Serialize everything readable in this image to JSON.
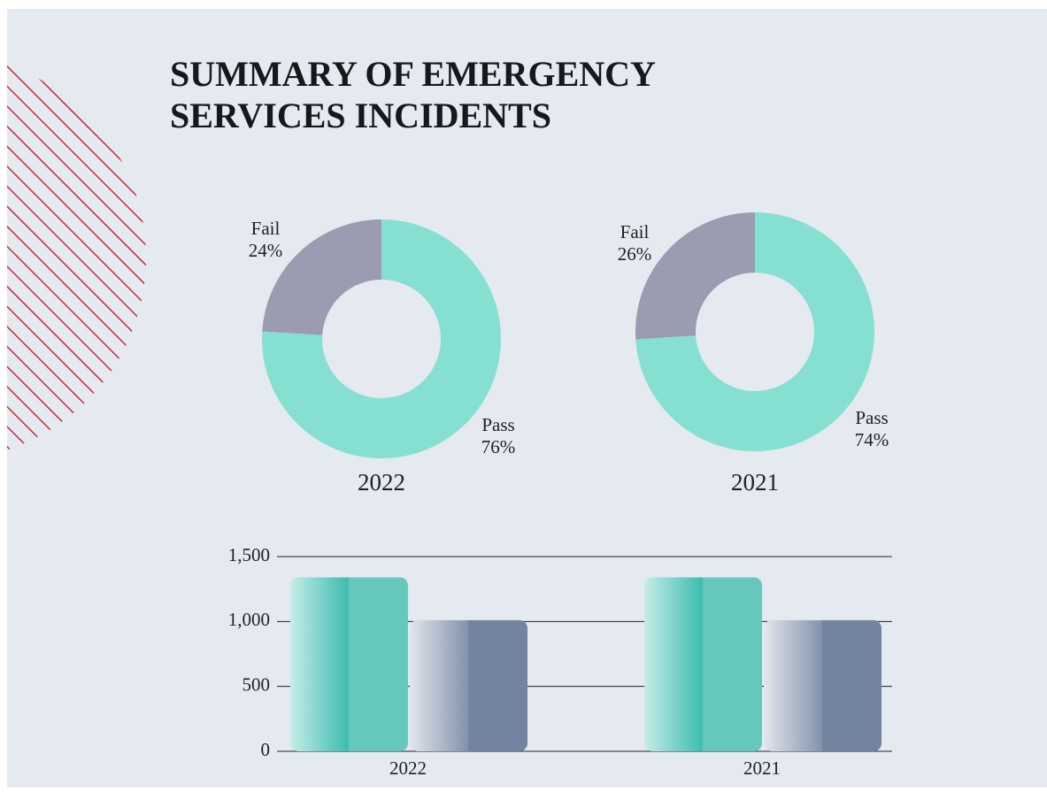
{
  "title": "SUMMARY OF EMERGENCY SERVICES INCIDENTS",
  "chart_data": [
    {
      "type": "donut",
      "title": "2022",
      "categories": [
        "Fail",
        "Pass"
      ],
      "values": [
        24,
        76
      ],
      "value_labels": [
        "24%",
        "76%"
      ],
      "colors": [
        "#9b9bb2",
        "#86e0d2"
      ]
    },
    {
      "type": "donut",
      "title": "2021",
      "categories": [
        "Fail",
        "Pass"
      ],
      "values": [
        26,
        74
      ],
      "value_labels": [
        "26%",
        "74%"
      ],
      "colors": [
        "#9b9bb2",
        "#86e0d2"
      ]
    },
    {
      "type": "bar",
      "categories": [
        "2022",
        "2021"
      ],
      "series": [
        {
          "color": "#66c8bc",
          "values": [
            1340,
            1340
          ]
        },
        {
          "color": "#7384a0",
          "values": [
            1010,
            1010
          ]
        }
      ],
      "ylim": [
        0,
        1500
      ],
      "yticks": [
        0,
        500,
        {
          "value": 1000,
          "label": "1,000"
        },
        {
          "value": 1500,
          "label": "1,500"
        }
      ],
      "grid": true
    }
  ]
}
